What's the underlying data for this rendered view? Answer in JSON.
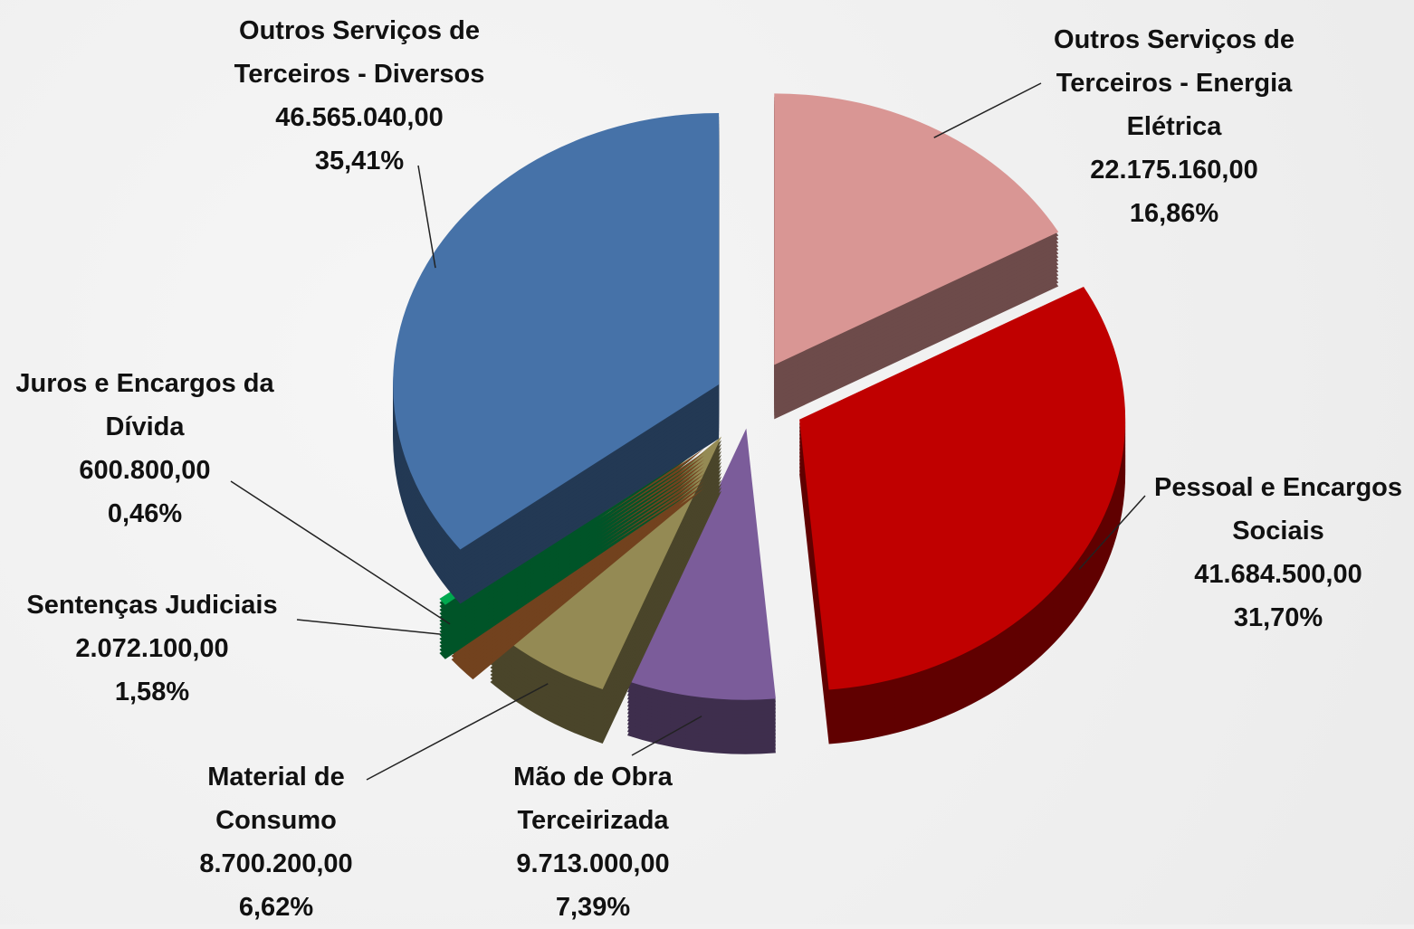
{
  "chart_data": {
    "type": "pie",
    "categories": [
      "Outros Serviços de Terceiros - Energia Elétrica",
      "Pessoal e Encargos Sociais",
      "Mão de Obra Terceirizada",
      "Material de Consumo",
      "Sentenças Judiciais",
      "Juros e Encargos da Dívida",
      "Outros Serviços de Terceiros - Diversos"
    ],
    "values": [
      22175160,
      41684500,
      9713000,
      8700200,
      2072100,
      600800,
      46565040
    ],
    "value_labels": [
      "22.175.160,00",
      "41.684.500,00",
      "9.713.000,00",
      "8.700.200,00",
      "2.072.100,00",
      "600.800,00",
      "46.565.040,00"
    ],
    "shares": [
      16.86,
      31.7,
      7.39,
      6.62,
      1.58,
      0.46,
      35.41
    ],
    "share_labels": [
      "16,86%",
      "31,70%",
      "7,39%",
      "6,62%",
      "1,58%",
      "0,46%",
      "35,41%"
    ],
    "colors": [
      "#d99694",
      "#c00000",
      "#7b5c9a",
      "#948a54",
      "#e3843c",
      "#00a84f",
      "#4672a8"
    ]
  }
}
